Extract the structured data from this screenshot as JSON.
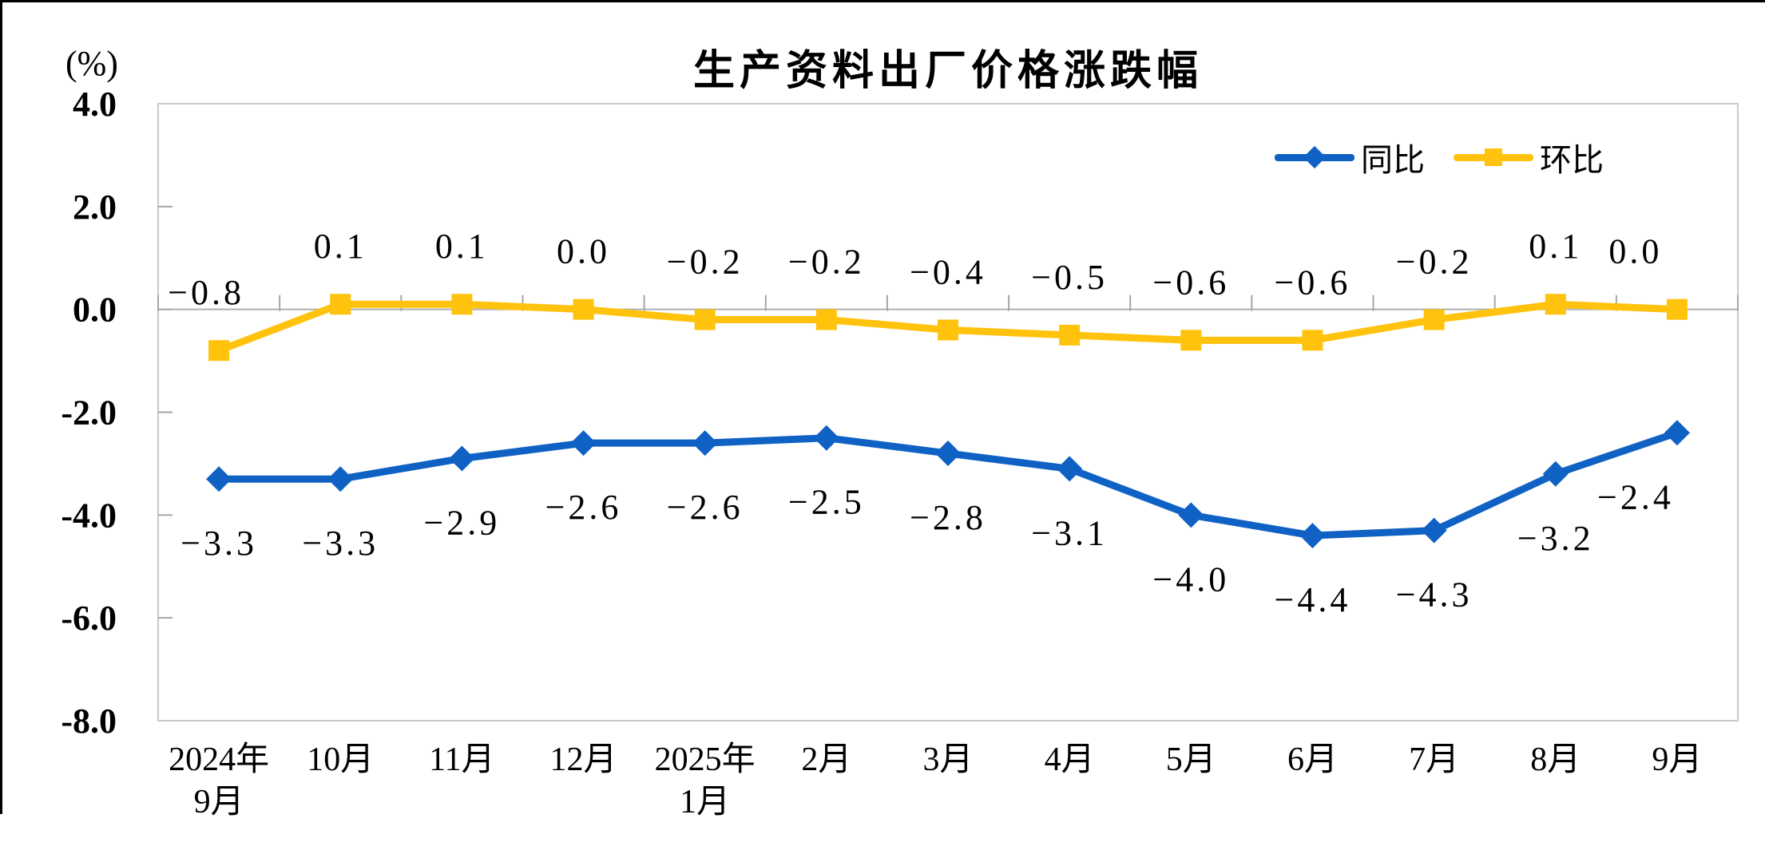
{
  "title": "生产资料出厂价格涨跌幅",
  "y_axis_unit_label": "(%)",
  "chart_data": {
    "type": "line",
    "title": "生产资料出厂价格涨跌幅",
    "categories": [
      [
        "2024年",
        "9月"
      ],
      [
        "10月"
      ],
      [
        "11月"
      ],
      [
        "12月"
      ],
      [
        "2025年",
        "1月"
      ],
      [
        "2月"
      ],
      [
        "3月"
      ],
      [
        "4月"
      ],
      [
        "5月"
      ],
      [
        "6月"
      ],
      [
        "7月"
      ],
      [
        "8月"
      ],
      [
        "9月"
      ]
    ],
    "series": [
      {
        "name": "同比",
        "color": "#0F62C4",
        "marker": "diamond",
        "label_position": "below",
        "values": [
          -3.3,
          -3.3,
          -2.9,
          -2.6,
          -2.6,
          -2.5,
          -2.8,
          -3.1,
          -4.0,
          -4.4,
          -4.3,
          -3.2,
          -2.4
        ]
      },
      {
        "name": "环比",
        "color": "#FFC30D",
        "marker": "square",
        "label_position": "above",
        "values": [
          -0.8,
          0.1,
          0.1,
          0.0,
          -0.2,
          -0.2,
          -0.4,
          -0.5,
          -0.6,
          -0.6,
          -0.2,
          0.1,
          0.0
        ]
      }
    ],
    "ylabel": "(%)",
    "ylim": [
      -8.0,
      4.0
    ],
    "y_ticks": [
      4.0,
      2.0,
      0.0,
      -2.0,
      -4.0,
      -6.0,
      -8.0
    ],
    "grid": "zero-line-only",
    "legend_position": "top-right",
    "axis_color": "#C9C9C9",
    "zero_line_color": "#AFAFAF",
    "tick_color": "#A6A6A6",
    "label_color": "#000000"
  }
}
